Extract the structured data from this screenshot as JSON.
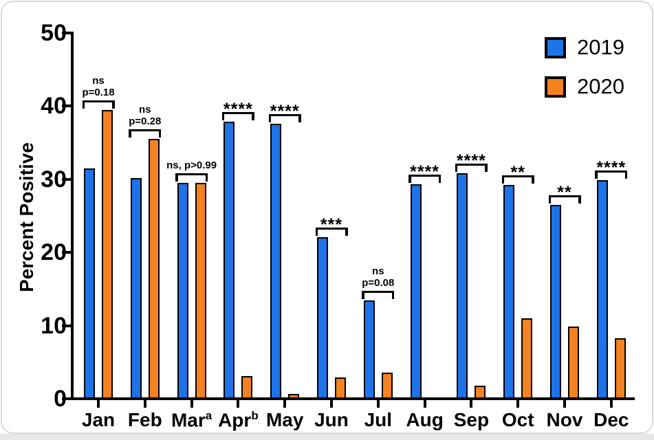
{
  "chart_data": {
    "type": "bar",
    "title": "",
    "xlabel": "",
    "ylabel": "Percent Positive",
    "ylim": [
      0,
      50
    ],
    "yticks": [
      0,
      10,
      20,
      30,
      40,
      50
    ],
    "grid": false,
    "legend_position": "top-right-inside",
    "bar_outline_color": "#000000",
    "categories": [
      "Jan",
      "Feb",
      "Mar",
      "Apr",
      "May",
      "Jun",
      "Jul",
      "Aug",
      "Sep",
      "Oct",
      "Nov",
      "Dec"
    ],
    "category_superscripts": [
      "",
      "",
      "a",
      "b",
      "",
      "",
      "",
      "",
      "",
      "",
      "",
      ""
    ],
    "series": [
      {
        "name": "2019",
        "color": "#1E73E8",
        "values": [
          31.5,
          30.1,
          29.5,
          37.8,
          37.6,
          22.1,
          13.4,
          29.3,
          30.8,
          29.2,
          26.5,
          29.9
        ]
      },
      {
        "name": "2020",
        "color": "#F58220",
        "values": [
          39.4,
          35.5,
          29.5,
          3.1,
          0.7,
          2.9,
          3.6,
          0,
          1.8,
          11.0,
          9.9,
          8.3
        ]
      }
    ],
    "annotations": [
      {
        "category": "Jan",
        "lines": [
          "ns",
          "p=0.18"
        ]
      },
      {
        "category": "Feb",
        "lines": [
          "ns",
          "p=0.28"
        ]
      },
      {
        "category": "Mar",
        "lines": [
          "ns, p>0.99"
        ]
      },
      {
        "category": "Apr",
        "lines": [
          "****"
        ]
      },
      {
        "category": "May",
        "lines": [
          "****"
        ]
      },
      {
        "category": "Jun",
        "lines": [
          "***"
        ]
      },
      {
        "category": "Jul",
        "lines": [
          "ns",
          "p=0.08"
        ]
      },
      {
        "category": "Aug",
        "lines": [
          "****"
        ]
      },
      {
        "category": "Sep",
        "lines": [
          "****"
        ]
      },
      {
        "category": "Oct",
        "lines": [
          "**"
        ]
      },
      {
        "category": "Nov",
        "lines": [
          "**"
        ]
      },
      {
        "category": "Dec",
        "lines": [
          "****"
        ]
      }
    ]
  }
}
